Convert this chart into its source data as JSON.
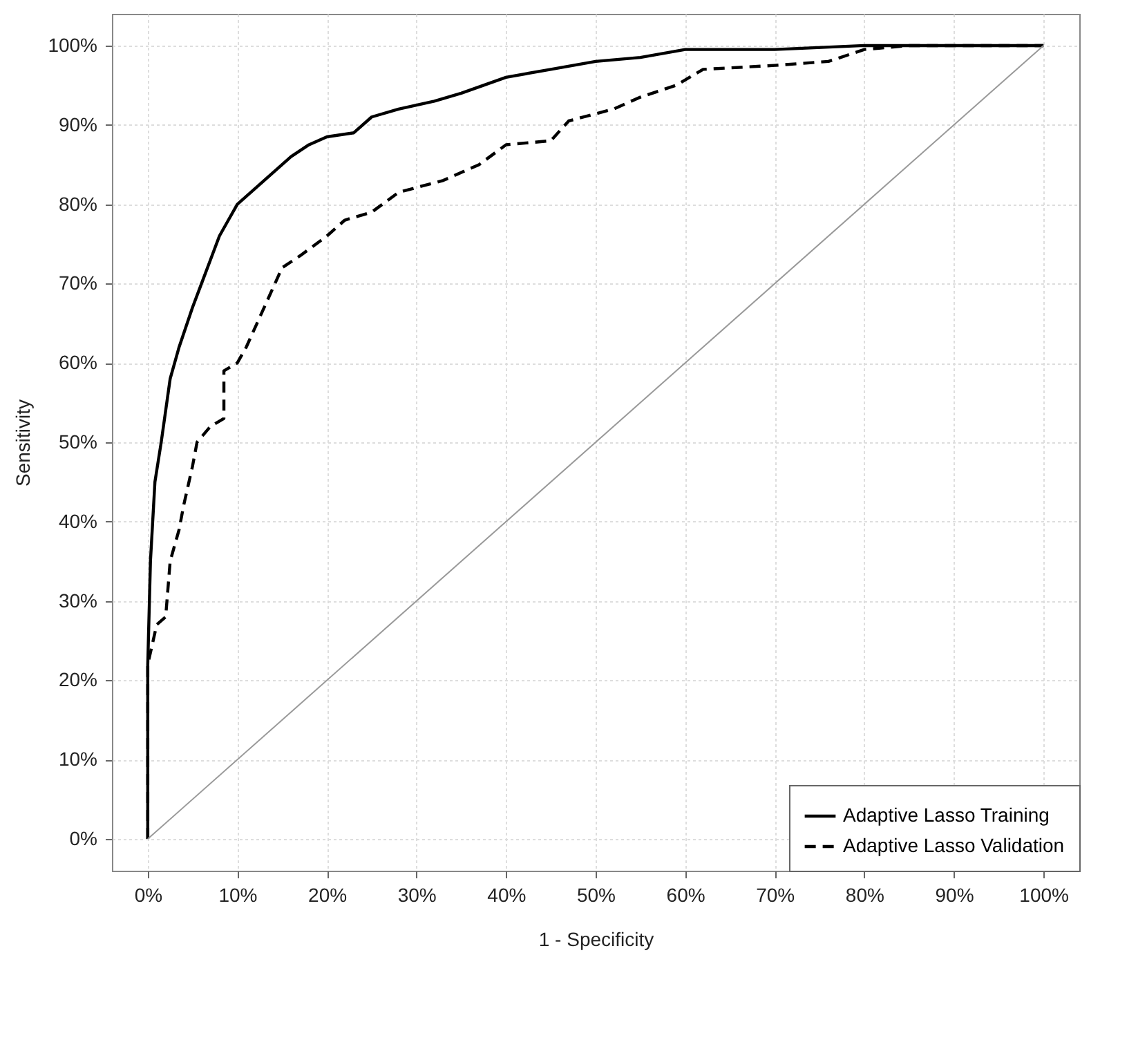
{
  "chart_data": {
    "type": "line",
    "xlabel": "1 - Specificity",
    "ylabel": "Sensitivity",
    "xlim": [
      -4,
      104
    ],
    "ylim": [
      -4,
      104
    ],
    "xticks": [
      {
        "value": 0,
        "label": "0%"
      },
      {
        "value": 10,
        "label": "10%"
      },
      {
        "value": 20,
        "label": "20%"
      },
      {
        "value": 30,
        "label": "30%"
      },
      {
        "value": 40,
        "label": "40%"
      },
      {
        "value": 50,
        "label": "50%"
      },
      {
        "value": 60,
        "label": "60%"
      },
      {
        "value": 70,
        "label": "70%"
      },
      {
        "value": 80,
        "label": "80%"
      },
      {
        "value": 90,
        "label": "90%"
      },
      {
        "value": 100,
        "label": "100%"
      }
    ],
    "yticks": [
      {
        "value": 0,
        "label": "0%"
      },
      {
        "value": 10,
        "label": "10%"
      },
      {
        "value": 20,
        "label": "20%"
      },
      {
        "value": 30,
        "label": "30%"
      },
      {
        "value": 40,
        "label": "40%"
      },
      {
        "value": 50,
        "label": "50%"
      },
      {
        "value": 60,
        "label": "60%"
      },
      {
        "value": 70,
        "label": "70%"
      },
      {
        "value": 80,
        "label": "80%"
      },
      {
        "value": 90,
        "label": "90%"
      },
      {
        "value": 100,
        "label": "100%"
      }
    ],
    "grid": true,
    "legend": "bottom right",
    "series": [
      {
        "name": "Adaptive Lasso Training",
        "color": "#000000",
        "line_style": "solid",
        "x": [
          0,
          0,
          0.3,
          0.8,
          1.5,
          2.5,
          3.5,
          5,
          6,
          7,
          8,
          9,
          10,
          12,
          14,
          16,
          18,
          20,
          23,
          25,
          28,
          32,
          35,
          40,
          45,
          50,
          55,
          60,
          70,
          80,
          100
        ],
        "values": [
          0,
          22,
          35,
          45,
          50,
          58,
          62,
          67,
          70,
          73,
          76,
          78,
          80,
          82,
          84,
          86,
          87.5,
          88.5,
          89,
          91,
          92,
          93,
          94,
          96,
          97,
          98,
          98.5,
          99.5,
          99.5,
          100,
          100
        ]
      },
      {
        "name": "Adaptive Lasso Validation",
        "color": "#000000",
        "line_style": "dashed",
        "x": [
          0,
          0,
          1,
          2,
          2.5,
          3.5,
          4,
          5,
          5.5,
          7,
          8.5,
          8.5,
          10,
          11,
          13,
          15,
          17,
          20,
          22,
          25,
          28,
          33,
          37,
          40,
          45,
          47,
          52,
          55,
          59,
          62,
          70,
          76,
          80,
          85,
          100
        ],
        "values": [
          0,
          22,
          27,
          28,
          35,
          39,
          42,
          47,
          50,
          52,
          53,
          59,
          60,
          62,
          67,
          72,
          73.5,
          76,
          78,
          79,
          81.5,
          83,
          85,
          87.5,
          88,
          90.5,
          92,
          93.5,
          95,
          97,
          97.5,
          98,
          99.5,
          100,
          100
        ]
      },
      {
        "color": "#999999",
        "line_style": "solid",
        "x": [
          0,
          100
        ],
        "values": [
          0,
          100
        ]
      }
    ]
  }
}
